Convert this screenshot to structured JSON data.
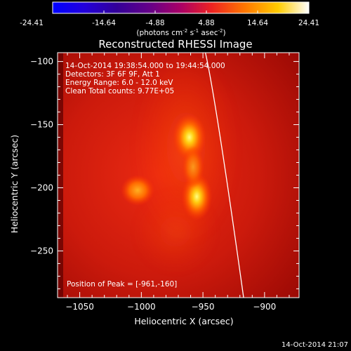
{
  "colorbar": {
    "ticks": [
      "-24.41",
      "-14.64",
      "-4.88",
      "4.88",
      "14.64",
      "24.41"
    ],
    "units_prefix": "(photons cm",
    "units_exp1": "-2",
    "units_mid": " s",
    "units_exp2": "-1",
    "units_mid2": " asec",
    "units_exp3": "-2",
    "units_suffix": ")"
  },
  "annotations": {
    "time_range": "14-Oct-2014 19:38:54.000 to 19:44:54.000",
    "detectors": "Detectors: 3F 6F 9F, Att 1",
    "energy": "Energy Range: 6.0 - 12.0 keV",
    "clean": "Clean    Total counts: 9.77E+05",
    "peak": "Position of Peak = [-961,-160]"
  },
  "footer": {
    "timestamp": "14-Oct-2014 21:07"
  },
  "chart_data": {
    "type": "heatmap",
    "title": "Reconstructed RHESSI Image",
    "xlabel": "Heliocentric X (arcsec)",
    "ylabel": "Heliocentric Y (arcsec)",
    "xlim": [
      -1068,
      -872
    ],
    "ylim": [
      -287,
      -93
    ],
    "xticks": [
      {
        "value": -1050,
        "label": "−1050"
      },
      {
        "value": -1000,
        "label": "−1000"
      },
      {
        "value": -950,
        "label": "−950"
      },
      {
        "value": -900,
        "label": "−900"
      }
    ],
    "yticks": [
      {
        "value": -100,
        "label": "−100"
      },
      {
        "value": -150,
        "label": "−150"
      },
      {
        "value": -200,
        "label": "−200"
      },
      {
        "value": -250,
        "label": "−250"
      }
    ],
    "colorbar_range": [
      -24.41,
      24.41
    ],
    "sources": [
      {
        "x": -961,
        "y": -160
      },
      {
        "x": -955,
        "y": -207
      },
      {
        "x": -1003,
        "y": -202
      }
    ],
    "limb_curve": [
      [
        -948,
        -93
      ],
      [
        -936,
        -160
      ],
      [
        -917,
        -287
      ]
    ]
  }
}
